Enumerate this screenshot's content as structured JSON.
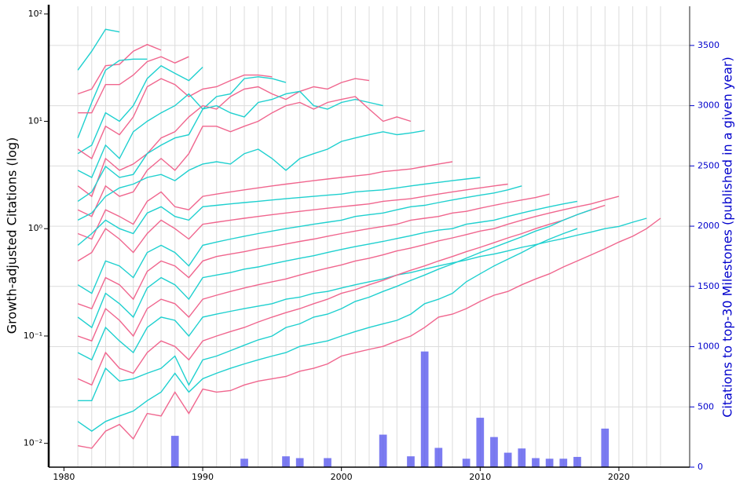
{
  "chart_data": {
    "type": "line",
    "y_label": "Growth-adjusted Citations (log)",
    "y2_label": "Citations to top-30 Milestones (published in a given year)",
    "log_y": true,
    "grid": true,
    "xlim": [
      1978.9,
      2025.1
    ],
    "xticks": [
      1980,
      1990,
      2000,
      2010,
      2020
    ],
    "ylim": [
      0.006,
      118
    ],
    "yticks": [
      {
        "value": 0.01,
        "label": "10⁻²"
      },
      {
        "value": 0.1,
        "label": "10⁻¹"
      },
      {
        "value": 1,
        "label": "10⁰"
      },
      {
        "value": 10,
        "label": "10¹"
      },
      {
        "value": 100,
        "label": "10²"
      }
    ],
    "y2lim": [
      0,
      3825
    ],
    "y2ticks": [
      0,
      500,
      1000,
      1500,
      2000,
      2500,
      3000,
      3500
    ],
    "y2_color": "#0000cc",
    "x": [
      1981,
      1982,
      1983,
      1984,
      1985,
      1986,
      1987,
      1988,
      1989,
      1990,
      1991,
      1992,
      1993,
      1994,
      1995,
      1996,
      1997,
      1998,
      1999,
      2000,
      2001,
      2002,
      2003,
      2004,
      2005,
      2006,
      2007,
      2008,
      2009,
      2010,
      2011,
      2012,
      2013,
      2014,
      2015,
      2016,
      2017,
      2018,
      2019,
      2020,
      2021,
      2022,
      2023
    ],
    "series": [
      {
        "color": "#1fd0cf",
        "values": [
          30,
          45,
          72,
          68,
          null,
          null,
          null,
          null,
          null,
          null,
          null,
          null,
          null,
          null,
          null,
          null,
          null,
          null,
          null,
          null,
          null,
          null,
          null,
          null,
          null,
          null,
          null,
          null,
          null,
          null,
          null,
          null,
          null,
          null,
          null,
          null,
          null,
          null,
          null,
          null,
          null,
          null,
          null
        ]
      },
      {
        "color": "#f0668e",
        "values": [
          18,
          20,
          33,
          34,
          45,
          52,
          46,
          null,
          null,
          null,
          null,
          null,
          null,
          null,
          null,
          null,
          null,
          null,
          null,
          null,
          null,
          null,
          null,
          null,
          null,
          null,
          null,
          null,
          null,
          null,
          null,
          null,
          null,
          null,
          null,
          null,
          null,
          null,
          null,
          null,
          null,
          null,
          null
        ]
      },
      {
        "color": "#1fd0cf",
        "values": [
          7,
          15,
          30,
          37,
          38,
          38,
          null,
          null,
          null,
          null,
          null,
          null,
          null,
          null,
          null,
          null,
          null,
          null,
          null,
          null,
          null,
          null,
          null,
          null,
          null,
          null,
          null,
          null,
          null,
          null,
          null,
          null,
          null,
          null,
          null,
          null,
          null,
          null,
          null,
          null,
          null,
          null,
          null
        ]
      },
      {
        "color": "#f0668e",
        "values": [
          12,
          12,
          22,
          22,
          27,
          36,
          40,
          35,
          40,
          null,
          null,
          null,
          null,
          null,
          null,
          null,
          null,
          null,
          null,
          null,
          null,
          null,
          null,
          null,
          null,
          null,
          null,
          null,
          null,
          null,
          null,
          null,
          null,
          null,
          null,
          null,
          null,
          null,
          null,
          null,
          null,
          null,
          null
        ]
      },
      {
        "color": "#1fd0cf",
        "values": [
          5,
          6,
          12,
          10,
          14,
          25,
          33,
          28,
          24,
          32,
          null,
          null,
          null,
          null,
          null,
          null,
          null,
          null,
          null,
          null,
          null,
          null,
          null,
          null,
          null,
          null,
          null,
          null,
          null,
          null,
          null,
          null,
          null,
          null,
          null,
          null,
          null,
          null,
          null,
          null,
          null,
          null,
          null
        ]
      },
      {
        "color": "#f0668e",
        "values": [
          5.5,
          4.5,
          9,
          7.5,
          11,
          21,
          25,
          22,
          17,
          20,
          21,
          24,
          27,
          27,
          26,
          null,
          null,
          null,
          null,
          null,
          null,
          null,
          null,
          null,
          null,
          null,
          null,
          null,
          null,
          null,
          null,
          null,
          null,
          null,
          null,
          null,
          null,
          null,
          null,
          null,
          null,
          null,
          null
        ]
      },
      {
        "color": "#1fd0cf",
        "values": [
          3.5,
          3,
          6,
          4.5,
          8,
          10,
          12,
          14,
          18,
          13,
          17,
          18,
          25,
          26,
          25,
          23,
          null,
          null,
          null,
          null,
          null,
          null,
          null,
          null,
          null,
          null,
          null,
          null,
          null,
          null,
          null,
          null,
          null,
          null,
          null,
          null,
          null,
          null,
          null,
          null,
          null,
          null,
          null
        ]
      },
      {
        "color": "#f0668e",
        "values": [
          2.5,
          2,
          4.5,
          3.5,
          4,
          5,
          7,
          8,
          11,
          14,
          13,
          17,
          20,
          21,
          18,
          16,
          19,
          21,
          20,
          23,
          25,
          24,
          null,
          null,
          null,
          null,
          null,
          null,
          null,
          null,
          null,
          null,
          null,
          null,
          null,
          null,
          null,
          null,
          null,
          null,
          null,
          null,
          null
        ]
      },
      {
        "color": "#1fd0cf",
        "values": [
          1.8,
          2.2,
          3.8,
          3,
          3.2,
          5,
          6,
          7,
          7.5,
          13,
          14,
          12,
          11,
          15,
          16,
          18,
          19,
          14,
          13,
          15,
          16,
          15,
          14,
          null,
          null,
          null,
          null,
          null,
          null,
          null,
          null,
          null,
          null,
          null,
          null,
          null,
          null,
          null,
          null,
          null,
          null,
          null,
          null
        ]
      },
      {
        "color": "#f0668e",
        "values": [
          1.5,
          1.3,
          2.5,
          2,
          2.2,
          3.5,
          4.5,
          3.5,
          5,
          9,
          9,
          8,
          9,
          10,
          12,
          14,
          15,
          13,
          15,
          16,
          17,
          13,
          10,
          11,
          10,
          null,
          null,
          null,
          null,
          null,
          null,
          null,
          null,
          null,
          null,
          null,
          null,
          null,
          null,
          null,
          null,
          null,
          null
        ]
      },
      {
        "color": "#1fd0cf",
        "values": [
          1.2,
          1.4,
          2,
          2.4,
          2.6,
          3,
          3.2,
          2.8,
          3.5,
          4,
          4.2,
          4,
          5,
          5.5,
          4.5,
          3.5,
          4.5,
          5,
          5.5,
          6.5,
          7,
          7.5,
          8,
          7.5,
          7.8,
          8.2,
          null,
          null,
          null,
          null,
          null,
          null,
          null,
          null,
          null,
          null,
          null,
          null,
          null,
          null,
          null,
          null,
          null
        ]
      },
      {
        "color": "#f0668e",
        "values": [
          0.9,
          0.8,
          1.5,
          1.3,
          1.1,
          1.8,
          2.2,
          1.6,
          1.5,
          2.0,
          2.1,
          2.2,
          2.3,
          2.4,
          2.5,
          2.6,
          2.7,
          2.8,
          2.9,
          3.0,
          3.1,
          3.2,
          3.4,
          3.5,
          3.6,
          3.8,
          4.0,
          4.2,
          null,
          null,
          null,
          null,
          null,
          null,
          null,
          null,
          null,
          null,
          null,
          null,
          null,
          null,
          null
        ]
      },
      {
        "color": "#1fd0cf",
        "values": [
          0.7,
          0.9,
          1.2,
          1.0,
          0.9,
          1.4,
          1.6,
          1.3,
          1.2,
          1.6,
          1.65,
          1.7,
          1.75,
          1.8,
          1.85,
          1.9,
          1.95,
          2.0,
          2.05,
          2.1,
          2.2,
          2.25,
          2.3,
          2.4,
          2.5,
          2.6,
          2.7,
          2.8,
          2.9,
          3.0,
          null,
          null,
          null,
          null,
          null,
          null,
          null,
          null,
          null,
          null,
          null,
          null,
          null
        ]
      },
      {
        "color": "#f0668e",
        "values": [
          0.5,
          0.6,
          1.0,
          0.8,
          0.6,
          0.9,
          1.2,
          1.0,
          0.8,
          1.1,
          1.15,
          1.2,
          1.25,
          1.3,
          1.35,
          1.4,
          1.45,
          1.5,
          1.55,
          1.6,
          1.65,
          1.7,
          1.8,
          1.85,
          1.9,
          2.0,
          2.1,
          2.2,
          2.3,
          2.4,
          2.5,
          2.6,
          null,
          null,
          null,
          null,
          null,
          null,
          null,
          null,
          null,
          null,
          null
        ]
      },
      {
        "color": "#1fd0cf",
        "values": [
          0.3,
          0.25,
          0.5,
          0.45,
          0.35,
          0.6,
          0.7,
          0.6,
          0.45,
          0.7,
          0.75,
          0.8,
          0.85,
          0.9,
          0.95,
          1.0,
          1.05,
          1.1,
          1.15,
          1.2,
          1.3,
          1.35,
          1.4,
          1.5,
          1.6,
          1.65,
          1.75,
          1.85,
          1.95,
          2.05,
          2.15,
          2.3,
          2.5,
          null,
          null,
          null,
          null,
          null,
          null,
          null,
          null,
          null,
          null
        ]
      },
      {
        "color": "#f0668e",
        "values": [
          0.2,
          0.18,
          0.35,
          0.3,
          0.22,
          0.4,
          0.5,
          0.45,
          0.35,
          0.5,
          0.55,
          0.58,
          0.61,
          0.65,
          0.68,
          0.72,
          0.76,
          0.8,
          0.85,
          0.9,
          0.95,
          1.0,
          1.05,
          1.1,
          1.2,
          1.25,
          1.3,
          1.4,
          1.45,
          1.55,
          1.65,
          1.75,
          1.85,
          1.95,
          2.1,
          null,
          null,
          null,
          null,
          null,
          null,
          null,
          null
        ]
      },
      {
        "color": "#1fd0cf",
        "values": [
          0.15,
          0.12,
          0.25,
          0.2,
          0.15,
          0.28,
          0.35,
          0.3,
          0.22,
          0.35,
          0.37,
          0.39,
          0.42,
          0.44,
          0.47,
          0.5,
          0.53,
          0.56,
          0.6,
          0.64,
          0.68,
          0.72,
          0.76,
          0.81,
          0.86,
          0.92,
          0.97,
          1.0,
          1.1,
          1.15,
          1.2,
          1.3,
          1.4,
          1.5,
          1.6,
          1.7,
          1.8,
          null,
          null,
          null,
          null,
          null,
          null
        ]
      },
      {
        "color": "#f0668e",
        "values": [
          0.1,
          0.09,
          0.18,
          0.14,
          0.1,
          0.18,
          0.22,
          0.2,
          0.15,
          0.22,
          0.24,
          0.26,
          0.28,
          0.3,
          0.32,
          0.34,
          0.37,
          0.4,
          0.43,
          0.46,
          0.5,
          0.53,
          0.57,
          0.62,
          0.66,
          0.71,
          0.77,
          0.82,
          0.88,
          0.95,
          1.0,
          1.1,
          1.2,
          1.3,
          1.4,
          1.5,
          1.6,
          1.7,
          1.85,
          2.0,
          null,
          null,
          null
        ]
      },
      {
        "color": "#1fd0cf",
        "values": [
          0.07,
          0.06,
          0.12,
          0.09,
          0.07,
          0.12,
          0.15,
          0.14,
          0.1,
          0.15,
          0.16,
          0.17,
          0.18,
          0.19,
          0.2,
          0.22,
          0.23,
          0.25,
          0.26,
          0.28,
          0.3,
          0.32,
          0.34,
          0.37,
          0.39,
          0.42,
          0.45,
          0.48,
          0.51,
          0.55,
          0.58,
          0.62,
          0.67,
          0.71,
          0.76,
          0.81,
          0.87,
          0.93,
          1.0,
          1.05,
          1.15,
          1.25,
          null
        ]
      },
      {
        "color": "#f0668e",
        "values": [
          0.04,
          0.035,
          0.07,
          0.05,
          0.045,
          0.07,
          0.09,
          0.08,
          0.06,
          0.09,
          0.1,
          0.11,
          0.12,
          0.135,
          0.15,
          0.165,
          0.18,
          0.2,
          0.22,
          0.25,
          0.27,
          0.3,
          0.33,
          0.37,
          0.41,
          0.45,
          0.5,
          0.55,
          0.61,
          0.67,
          0.74,
          0.82,
          0.9,
          1.0,
          1.1,
          1.2,
          1.35,
          1.5,
          1.65,
          null,
          null,
          null,
          null
        ]
      },
      {
        "color": "#1fd0cf",
        "values": [
          0.025,
          0.025,
          0.05,
          0.038,
          0.04,
          0.045,
          0.05,
          0.065,
          0.035,
          0.06,
          0.065,
          0.073,
          0.082,
          0.092,
          0.1,
          0.12,
          0.13,
          0.15,
          0.16,
          0.18,
          0.21,
          0.23,
          0.26,
          0.29,
          0.33,
          0.37,
          0.42,
          0.47,
          0.53,
          0.6,
          0.67,
          0.75,
          0.84,
          0.95,
          1.05,
          1.2,
          1.35,
          1.5,
          null,
          null,
          null,
          null,
          null
        ]
      },
      {
        "color": "#f0668e",
        "values": [
          0.0095,
          0.009,
          0.013,
          0.015,
          0.011,
          0.019,
          0.018,
          0.03,
          0.019,
          0.032,
          0.03,
          0.031,
          0.035,
          0.038,
          0.04,
          0.042,
          0.047,
          0.05,
          0.055,
          0.065,
          0.07,
          0.075,
          0.08,
          0.09,
          0.1,
          0.12,
          0.15,
          0.16,
          0.18,
          0.21,
          0.24,
          0.26,
          0.3,
          0.34,
          0.38,
          0.44,
          0.5,
          0.57,
          0.65,
          0.75,
          0.85,
          1.0,
          1.25
        ]
      },
      {
        "color": "#1fd0cf",
        "values": [
          0.016,
          0.013,
          0.016,
          0.018,
          0.02,
          0.025,
          0.03,
          0.045,
          0.03,
          0.04,
          0.045,
          0.05,
          0.055,
          0.06,
          0.065,
          0.07,
          0.08,
          0.085,
          0.09,
          0.1,
          0.11,
          0.12,
          0.13,
          0.14,
          0.16,
          0.2,
          0.22,
          0.25,
          0.32,
          0.38,
          0.45,
          0.52,
          0.6,
          0.7,
          0.8,
          0.9,
          1.0,
          null,
          null,
          null,
          null,
          null,
          null
        ]
      },
      {
        "type": "bar",
        "axis": "y2",
        "color": "#5a5aee",
        "values": [
          null,
          null,
          null,
          null,
          null,
          null,
          null,
          260,
          null,
          null,
          null,
          null,
          70,
          null,
          null,
          90,
          75,
          null,
          75,
          null,
          null,
          null,
          270,
          null,
          90,
          960,
          160,
          null,
          70,
          410,
          250,
          120,
          155,
          75,
          70,
          70,
          85,
          null,
          320,
          null,
          null,
          null,
          null
        ]
      }
    ]
  }
}
